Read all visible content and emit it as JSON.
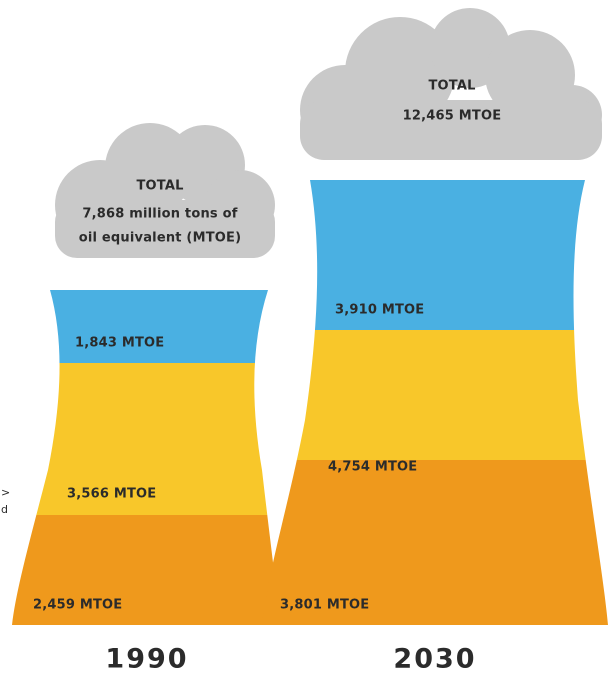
{
  "edge_fragments": [
    ">",
    "d"
  ],
  "towers": [
    {
      "year": "1990",
      "total": [
        "TOTAL",
        "7,868 million tons of",
        "oil equivalent (MTOE)"
      ],
      "segments": [
        "1,843 MTOE",
        "3,566 MTOE",
        "2,459 MTOE"
      ]
    },
    {
      "year": "2030",
      "total": [
        "TOTAL",
        "12,465 MTOE"
      ],
      "segments": [
        "3,910 MTOE",
        "4,754 MTOE",
        "3,801 MTOE"
      ]
    }
  ]
}
